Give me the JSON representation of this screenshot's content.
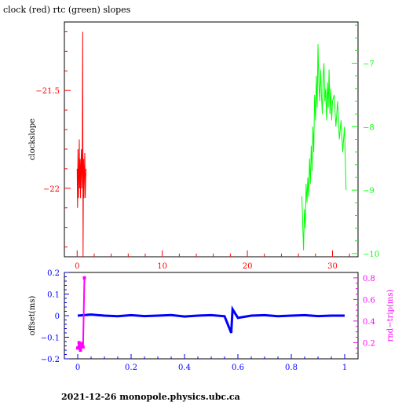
{
  "title": "clock (red) rtc (green) slopes",
  "footer": "2021-12-26  monopole.physics.ubc.ca",
  "colors": {
    "red": "#ff0000",
    "green": "#00ff00",
    "blue": "#0000ff",
    "magenta": "#ff00ff",
    "frame": "#000000"
  },
  "chart_data": [
    {
      "type": "line",
      "title": "clock (red) rtc (green) slopes",
      "xlabel": "",
      "ylabel": "clockslope",
      "y2label": "",
      "xlim": [
        -1.5,
        33
      ],
      "ylim": [
        -22.35,
        -21.15
      ],
      "y2lim": [
        -10.05,
        -6.35
      ],
      "x_ticks": [
        0,
        10,
        20,
        30
      ],
      "y_ticks": [
        -22,
        -21.5
      ],
      "y2_ticks": [
        -10,
        -9,
        -8,
        -7
      ],
      "x_tick_labels": [
        "0",
        "10",
        "20",
        "30"
      ],
      "y_tick_labels": [
        "−22",
        "−21.5"
      ],
      "y2_tick_labels": [
        "−10",
        "−9",
        "−8",
        "−7"
      ],
      "series": [
        {
          "color": "#ff0000",
          "axis": "left",
          "x": [
            0.0,
            0.05,
            0.1,
            0.15,
            0.2,
            0.25,
            0.3,
            0.35,
            0.4,
            0.45,
            0.5,
            0.55,
            0.6,
            0.65,
            0.7,
            0.75,
            0.8,
            0.85,
            0.9,
            0.95,
            1.0,
            1.05
          ],
          "y": [
            -21.9,
            -22.1,
            -21.8,
            -22.05,
            -21.95,
            -21.75,
            -22.0,
            -21.85,
            -22.05,
            -21.9,
            -21.8,
            -22.0,
            -21.88,
            -21.2,
            -22.35,
            -21.85,
            -22.05,
            -21.9,
            -21.82,
            -22.05,
            -21.95,
            -21.9
          ]
        },
        {
          "color": "#00ff00",
          "axis": "right",
          "x": [
            26.4,
            26.5,
            26.6,
            26.7,
            26.8,
            26.9,
            27.0,
            27.1,
            27.2,
            27.3,
            27.4,
            27.5,
            27.6,
            27.7,
            27.8,
            27.9,
            28.0,
            28.1,
            28.2,
            28.3,
            28.4,
            28.5,
            28.6,
            28.7,
            28.8,
            28.9,
            29.0,
            29.1,
            29.2,
            29.3,
            29.4,
            29.5,
            29.6,
            29.7,
            29.8,
            29.9,
            30.0,
            30.2,
            30.4,
            30.6,
            30.8,
            31.0,
            31.2,
            31.4,
            31.6
          ],
          "y": [
            -9.1,
            -9.5,
            -9.95,
            -9.3,
            -9.6,
            -8.9,
            -9.2,
            -8.8,
            -9.1,
            -8.5,
            -8.9,
            -8.3,
            -8.7,
            -8.0,
            -8.4,
            -7.5,
            -7.9,
            -7.2,
            -7.7,
            -6.7,
            -7.3,
            -7.6,
            -7.1,
            -7.5,
            -7.8,
            -7.2,
            -7.0,
            -7.6,
            -7.4,
            -7.9,
            -7.3,
            -7.7,
            -7.1,
            -7.8,
            -7.4,
            -7.9,
            -7.6,
            -7.5,
            -8.0,
            -7.6,
            -8.2,
            -7.9,
            -8.4,
            -8.0,
            -9.0
          ]
        }
      ]
    },
    {
      "type": "scatter",
      "xlabel": "",
      "ylabel": "offset(ms)",
      "y2label": "rnd−trip(ms)",
      "xlim": [
        -0.05,
        1.05
      ],
      "ylim": [
        -0.2,
        0.2
      ],
      "y2lim": [
        0.05,
        0.85
      ],
      "x_ticks": [
        0,
        0.2,
        0.4,
        0.6,
        0.8,
        1
      ],
      "x_tick_labels": [
        "0",
        "0.2",
        "0.4",
        "0.6",
        "0.8",
        "1"
      ],
      "y_ticks": [
        -0.2,
        -0.1,
        0,
        0.1,
        0.2
      ],
      "y_tick_labels": [
        "−0.2",
        "−0.1",
        "0",
        "0.1",
        "0.2"
      ],
      "y2_ticks": [
        0.2,
        0.4,
        0.6,
        0.8
      ],
      "y2_tick_labels": [
        "0.2",
        "0.4",
        "0.6",
        "0.8"
      ],
      "offset_series": {
        "color": "#0000ff",
        "axis": "left",
        "x": [
          0.0,
          0.05,
          0.1,
          0.15,
          0.2,
          0.25,
          0.3,
          0.35,
          0.4,
          0.45,
          0.5,
          0.55,
          0.575,
          0.58,
          0.6,
          0.65,
          0.7,
          0.75,
          0.8,
          0.85,
          0.9,
          0.95,
          1.0
        ],
        "y": [
          0.0,
          0.005,
          0.0,
          -0.003,
          0.002,
          -0.002,
          0.0,
          0.003,
          -0.004,
          0.0,
          0.002,
          -0.003,
          -0.08,
          0.03,
          -0.01,
          0.0,
          0.002,
          -0.003,
          0.0,
          0.002,
          -0.002,
          0.0,
          0.0
        ]
      },
      "roundtrip_series": {
        "color": "#ff00ff",
        "axis": "right",
        "x": [
          0.0,
          0.005,
          0.01,
          0.015,
          0.02,
          0.025
        ],
        "y": [
          0.15,
          0.2,
          0.13,
          0.19,
          0.16,
          0.8
        ]
      }
    }
  ]
}
